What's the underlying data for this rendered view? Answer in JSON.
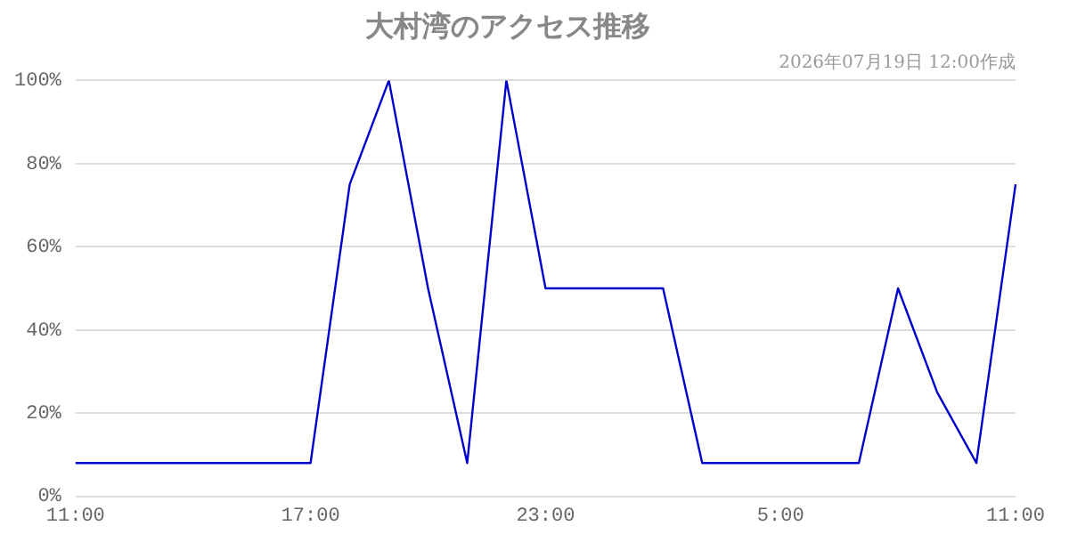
{
  "chart_data": {
    "type": "line",
    "title": "大村湾のアクセス推移",
    "subtitle": "2026年07月19日 12:00作成",
    "categories": [
      "11:00",
      null,
      null,
      null,
      null,
      null,
      "17:00",
      null,
      null,
      null,
      null,
      null,
      "23:00",
      null,
      null,
      null,
      null,
      null,
      "5:00",
      null,
      null,
      null,
      null,
      null,
      "11:00"
    ],
    "series": [
      {
        "color": "#0000cc",
        "values": [
          8,
          8,
          8,
          8,
          8,
          8,
          8,
          75,
          100,
          50,
          8,
          100,
          50,
          50,
          50,
          50,
          8,
          8,
          8,
          8,
          8,
          50,
          25,
          8,
          75
        ]
      }
    ],
    "ylim": [
      0,
      100
    ],
    "yticks": [
      {
        "value": 0,
        "label": "0%"
      },
      {
        "value": 20,
        "label": "20%"
      },
      {
        "value": 40,
        "label": "40%"
      },
      {
        "value": 60,
        "label": "60%"
      },
      {
        "value": 80,
        "label": "80%"
      },
      {
        "value": 100,
        "label": "100%"
      }
    ],
    "grid": "y",
    "legend": false,
    "marker": "none",
    "line_style": "solid"
  }
}
